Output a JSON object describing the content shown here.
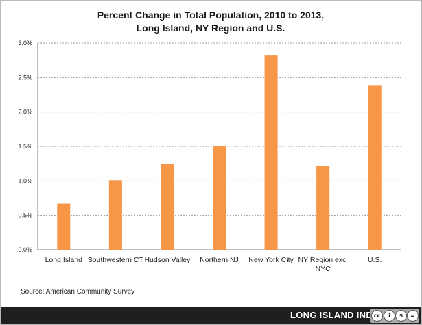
{
  "chart_data": {
    "type": "bar",
    "title_lines": [
      "Percent Change in  Total Population, 2010 to 2013,",
      "Long Island, NY Region and U.S."
    ],
    "categories": [
      "Long Island",
      "Southwestern CT",
      "Hudson Valley",
      "Northern NJ",
      "New York City",
      "NY Region excl NYC",
      "U.S."
    ],
    "category_lines": [
      [
        "Long Island"
      ],
      [
        "Southwestern CT"
      ],
      [
        "Hudson Valley"
      ],
      [
        "Northern NJ"
      ],
      [
        "New York City"
      ],
      [
        "NY Region excl",
        "NYC"
      ],
      [
        "U.S."
      ]
    ],
    "values": [
      0.67,
      1.01,
      1.25,
      1.51,
      2.82,
      1.22,
      2.39
    ],
    "yticks": [
      "0.0%",
      "0.5%",
      "1.0%",
      "1.5%",
      "2.0%",
      "2.5%",
      "3.0%"
    ],
    "ylim": [
      0,
      3.0
    ],
    "grid": true,
    "bar_color": "#f79646"
  },
  "source_note": "Source: American Community Survey",
  "branding": {
    "text": "LONG ISLAND INDEX",
    "license_icons": [
      "cc-icon",
      "by-icon",
      "nc-icon",
      "nd-icon"
    ]
  }
}
